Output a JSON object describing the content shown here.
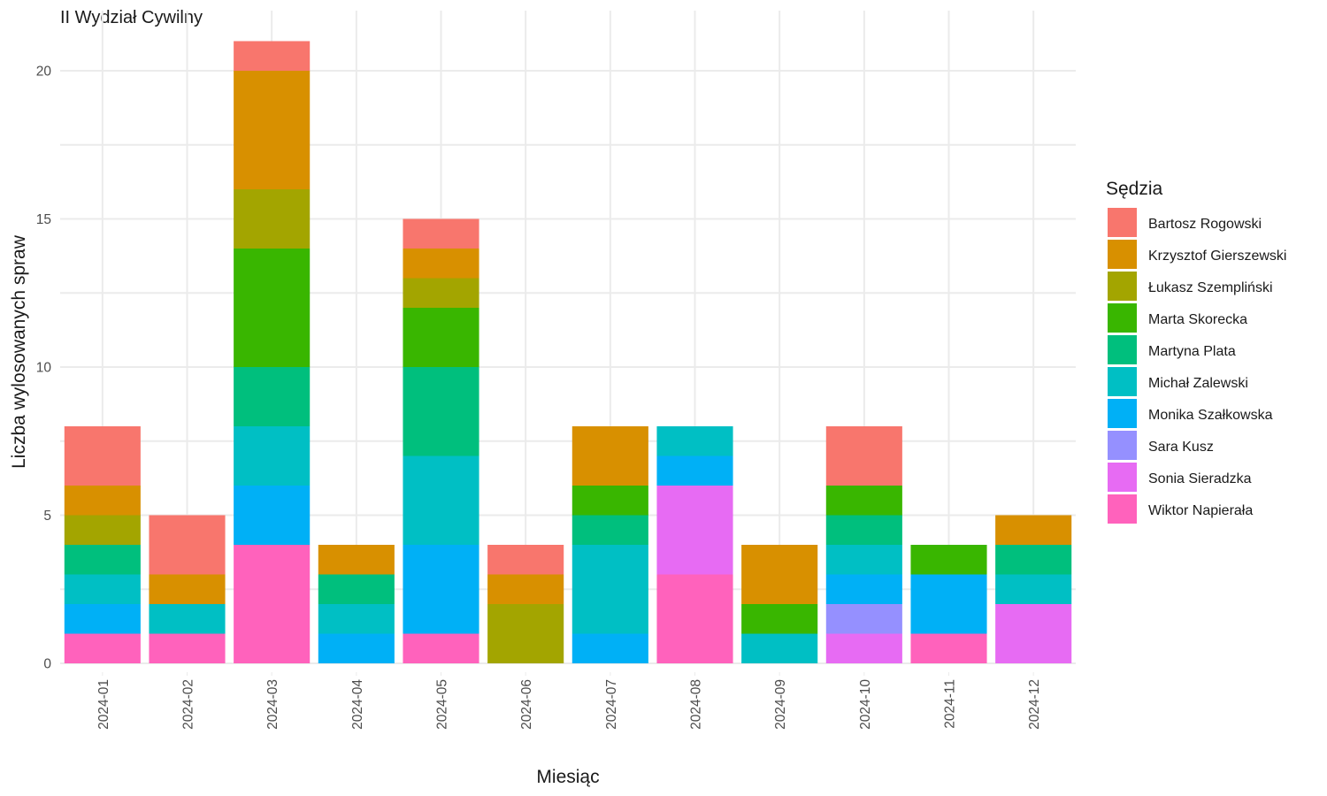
{
  "chart_data": {
    "type": "bar",
    "stacked": true,
    "title": "II Wydział Cywilny",
    "xlabel": "Miesiąc",
    "ylabel": "Liczba wylosowanych spraw",
    "ylim": [
      0,
      21
    ],
    "yticks": [
      0,
      5,
      10,
      15,
      20
    ],
    "grid": true,
    "legend_title": "Sędzia",
    "legend_position": "right",
    "categories": [
      "2024-01",
      "2024-02",
      "2024-03",
      "2024-04",
      "2024-05",
      "2024-06",
      "2024-07",
      "2024-08",
      "2024-09",
      "2024-10",
      "2024-11",
      "2024-12"
    ],
    "series": [
      {
        "name": "Bartosz Rogowski",
        "color": "#F8766D",
        "values": [
          2,
          2,
          1,
          0,
          1,
          1,
          0,
          0,
          0,
          2,
          0,
          0
        ]
      },
      {
        "name": "Krzysztof Gierszewski",
        "color": "#D89000",
        "values": [
          1,
          1,
          4,
          1,
          1,
          1,
          2,
          0,
          2,
          0,
          0,
          1
        ]
      },
      {
        "name": "Łukasz Szempliński",
        "color": "#A3A500",
        "values": [
          1,
          0,
          2,
          0,
          1,
          2,
          0,
          0,
          0,
          0,
          0,
          0
        ]
      },
      {
        "name": "Marta Skorecka",
        "color": "#39B600",
        "values": [
          0,
          0,
          4,
          0,
          2,
          0,
          1,
          0,
          1,
          1,
          1,
          0
        ]
      },
      {
        "name": "Martyna Plata",
        "color": "#00BF7D",
        "values": [
          1,
          0,
          2,
          1,
          3,
          0,
          1,
          0,
          0,
          1,
          0,
          1
        ]
      },
      {
        "name": "Michał Zalewski",
        "color": "#00BFC4",
        "values": [
          1,
          1,
          2,
          1,
          3,
          0,
          3,
          1,
          1,
          1,
          0,
          1
        ]
      },
      {
        "name": "Monika Szałkowska",
        "color": "#00B0F6",
        "values": [
          1,
          0,
          2,
          1,
          3,
          0,
          1,
          1,
          0,
          1,
          2,
          0
        ]
      },
      {
        "name": "Sara Kusz",
        "color": "#9590FF",
        "values": [
          0,
          0,
          0,
          0,
          0,
          0,
          0,
          0,
          0,
          1,
          0,
          0
        ]
      },
      {
        "name": "Sonia Sieradzka",
        "color": "#E76BF3",
        "values": [
          0,
          0,
          0,
          0,
          0,
          0,
          0,
          3,
          0,
          1,
          0,
          2
        ]
      },
      {
        "name": "Wiktor Napierała",
        "color": "#FF62BC",
        "values": [
          1,
          1,
          4,
          0,
          1,
          0,
          0,
          3,
          0,
          0,
          1,
          0
        ]
      }
    ]
  }
}
